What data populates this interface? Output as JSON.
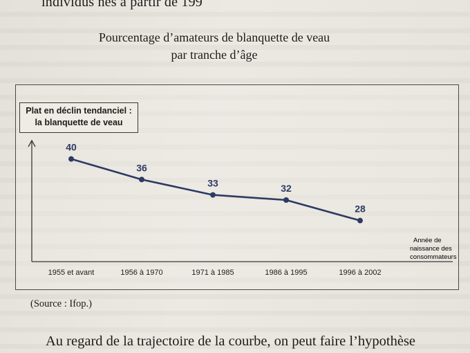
{
  "header_text": "individus nés à partir de 199",
  "figure": {
    "title_line1": "Pourcentage d’amateurs de blanquette de veau",
    "title_line2": "par tranche d’âge",
    "callout_line1": "Plat en déclin tendanciel :",
    "callout_line2": "la blanquette de veau",
    "axis_note_line1": "Année de",
    "axis_note_line2": "naissance des",
    "axis_note_line3": "consommateurs",
    "source": "(Source : Ifop.)"
  },
  "bottom_text": "Au regard de la trajectoire de la courbe, on peut faire l’hypothèse",
  "chart_data": {
    "type": "line",
    "title": "Pourcentage d’amateurs de blanquette de veau par tranche d’âge",
    "categories": [
      "1955 et avant",
      "1956 à 1970",
      "1971 à 1985",
      "1986 à 1995",
      "1996 à 2002"
    ],
    "values": [
      40,
      36,
      33,
      32,
      28
    ],
    "xlabel": "Année de naissance des consommateurs",
    "ylabel": "",
    "ylim": [
      20,
      44
    ],
    "grid": false,
    "line_color": "#2d3a62"
  }
}
